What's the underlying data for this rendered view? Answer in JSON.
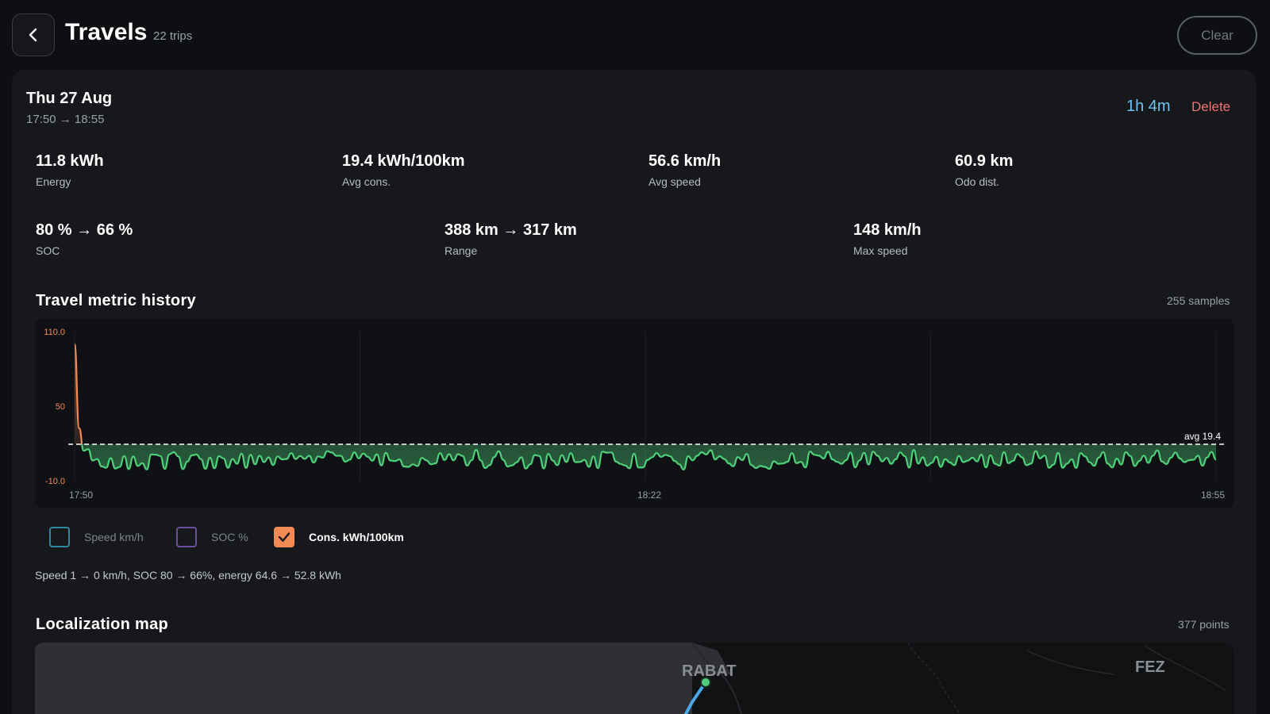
{
  "header": {
    "title": "Travels",
    "trip_count": "22 trips",
    "clear_label": "Clear"
  },
  "trip": {
    "date": "Thu 27 Aug",
    "time_range": "17:50 → 18:55",
    "duration": "1h 4m",
    "delete_label": "Delete"
  },
  "metrics": {
    "energy": {
      "value": "11.8 kWh",
      "label": "Energy"
    },
    "avg_cons": {
      "value": "19.4 kWh/100km",
      "label": "Avg cons."
    },
    "avg_speed": {
      "value": "56.6 km/h",
      "label": "Avg speed"
    },
    "odo_dist": {
      "value": "60.9 km",
      "label": "Odo dist."
    },
    "soc": {
      "value": "80 % → 66 %",
      "label": "SOC"
    },
    "range": {
      "value": "388 km → 317 km",
      "label": "Range"
    },
    "max_speed": {
      "value": "148 km/h",
      "label": "Max speed"
    }
  },
  "history": {
    "title": "Travel metric history",
    "samples": "255 samples",
    "legend": [
      {
        "label": "Speed km/h",
        "checked": false,
        "color": "#2d8a9e"
      },
      {
        "label": "SOC %",
        "checked": false,
        "color": "#6a4fa0"
      },
      {
        "label": "Cons. kWh/100km",
        "checked": true,
        "color": "#f28a55"
      }
    ],
    "summary": "Speed 1 → 0 km/h, SOC 80 → 66%, energy 64.6 → 52.8 kWh"
  },
  "chart_data": {
    "type": "line",
    "series": [
      {
        "name": "Cons. kWh/100km",
        "values": [
          99.6,
          32.3,
          14.2,
          15.4,
          6.3,
          7.4,
          1.5,
          0.5,
          8.2,
          -0.2,
          1.2,
          9.9,
          -0.6,
          9.5,
          1.9,
          4.2,
          -0.9,
          11.2,
          11.0,
          10.0,
          -0.5,
          11.3,
          13.0,
          9.5,
          -0.6,
          5.5,
          10.5,
          11.1,
          7.4,
          -0.4,
          8.6,
          0.0,
          9.8,
          8.0,
          0.4,
          7.5,
          3.6,
          11.8,
          0.3,
          10.9,
          3.2,
          10.1,
          5.0,
          8.8,
          2.7,
          9.6,
          7.2,
          7.5,
          12.2,
          7.5,
          9.9,
          7.6,
          10.1,
          4.7,
          9.6,
          8.6,
          13.8,
          12.7,
          10.1,
          10.1,
          5.3,
          7.0,
          12.9,
          8.0,
          11.9,
          9.3,
          6.1,
          11.3,
          2.3,
          12.4,
          6.3,
          5.8,
          7.2,
          1.5,
          1.2,
          3.2,
          1.9,
          8.4,
          6.4,
          3.3,
          4.0,
          12.3,
          6.7,
          11.4,
          6.5,
          11.4,
          9.9,
          2.2,
          6.5,
          14.9,
          6.4,
          0.2,
          2.5,
          9.0,
          13.7,
          6.8,
          1.5,
          2.4,
          4.9,
          8.9,
          -0.2,
          3.3,
          10.7,
          10.0,
          -0.1,
          11.6,
          6.2,
          2.5,
          10.6,
          5.1,
          12.2,
          5.0,
          5.1,
          6.8,
          1.2,
          9.6,
          0.2,
          13.4,
          12.6,
          12.8,
          5.4,
          3.5,
          2.3,
          0.0,
          11.8,
          0.6,
          0.8,
          6.7,
          8.8,
          12.3,
          9.2,
          10.8,
          9.7,
          5.9,
          3.3,
          -1.0,
          9.8,
          6.4,
          10.1,
          12.9,
          11.1,
          14.6,
          7.1,
          9.7,
          7.5,
          4.0,
          1.7,
          9.0,
          6.6,
          11.6,
          2.6,
          0.2,
          1.9,
          1.2,
          -0.4,
          5.7,
          3.6,
          3.9,
          5.2,
          12.2,
          4.2,
          5.2,
          0.7,
          13.5,
          10.9,
          10.2,
          7.9,
          13.3,
          7.2,
          5.2,
          3.6,
          6.6,
          12.8,
          0.8,
          6.4,
          12.4,
          3.1,
          13.4,
          10.1,
          5.6,
          8.4,
          3.6,
          7.3,
          12.8,
          9.8,
          0.6,
          14.8,
          3.8,
          8.9,
          2.1,
          4.5,
          9.4,
          1.2,
          7.3,
          4.7,
          2.6,
          10.0,
          5.0,
          6.2,
          8.5,
          5.6,
          11.0,
          0.7,
          10.5,
          3.7,
          2.1,
          13.1,
          4.2,
          6.0,
          11.5,
          8.8,
          2.5,
          3.8,
          13.9,
          8.0,
          10.3,
          0.4,
          3.0,
          12.4,
          0.4,
          3.8,
          7.3,
          0.3,
          12.2,
          9.5,
          4.9,
          2.0,
          8.6,
          13.1,
          3.7,
          0.7,
          7.8,
          3.1,
          13.0,
          9.9,
          1.8,
          5.9,
          10.2,
          4.4,
          10.1,
          14.5,
          5.5,
          3.4,
          8.6,
          12.7,
          7.9,
          5.0,
          6.5,
          6.9,
          10.2,
          2.1,
          8.7,
          13.2,
          7.1
        ]
      }
    ],
    "x_ticks": [
      "17:50",
      "18:22",
      "18:55"
    ],
    "y_ticks": [
      "110.0",
      "50",
      "-10.0"
    ],
    "ylim": [
      -10,
      110
    ],
    "avg_value": 19.4,
    "avg_label": "avg 19.4",
    "line_color": "#f28a55",
    "below_avg_color": "#4ed07a"
  },
  "map": {
    "title": "Localization map",
    "points": "377 points",
    "labels": [
      "RABAT",
      "FEZ"
    ]
  }
}
